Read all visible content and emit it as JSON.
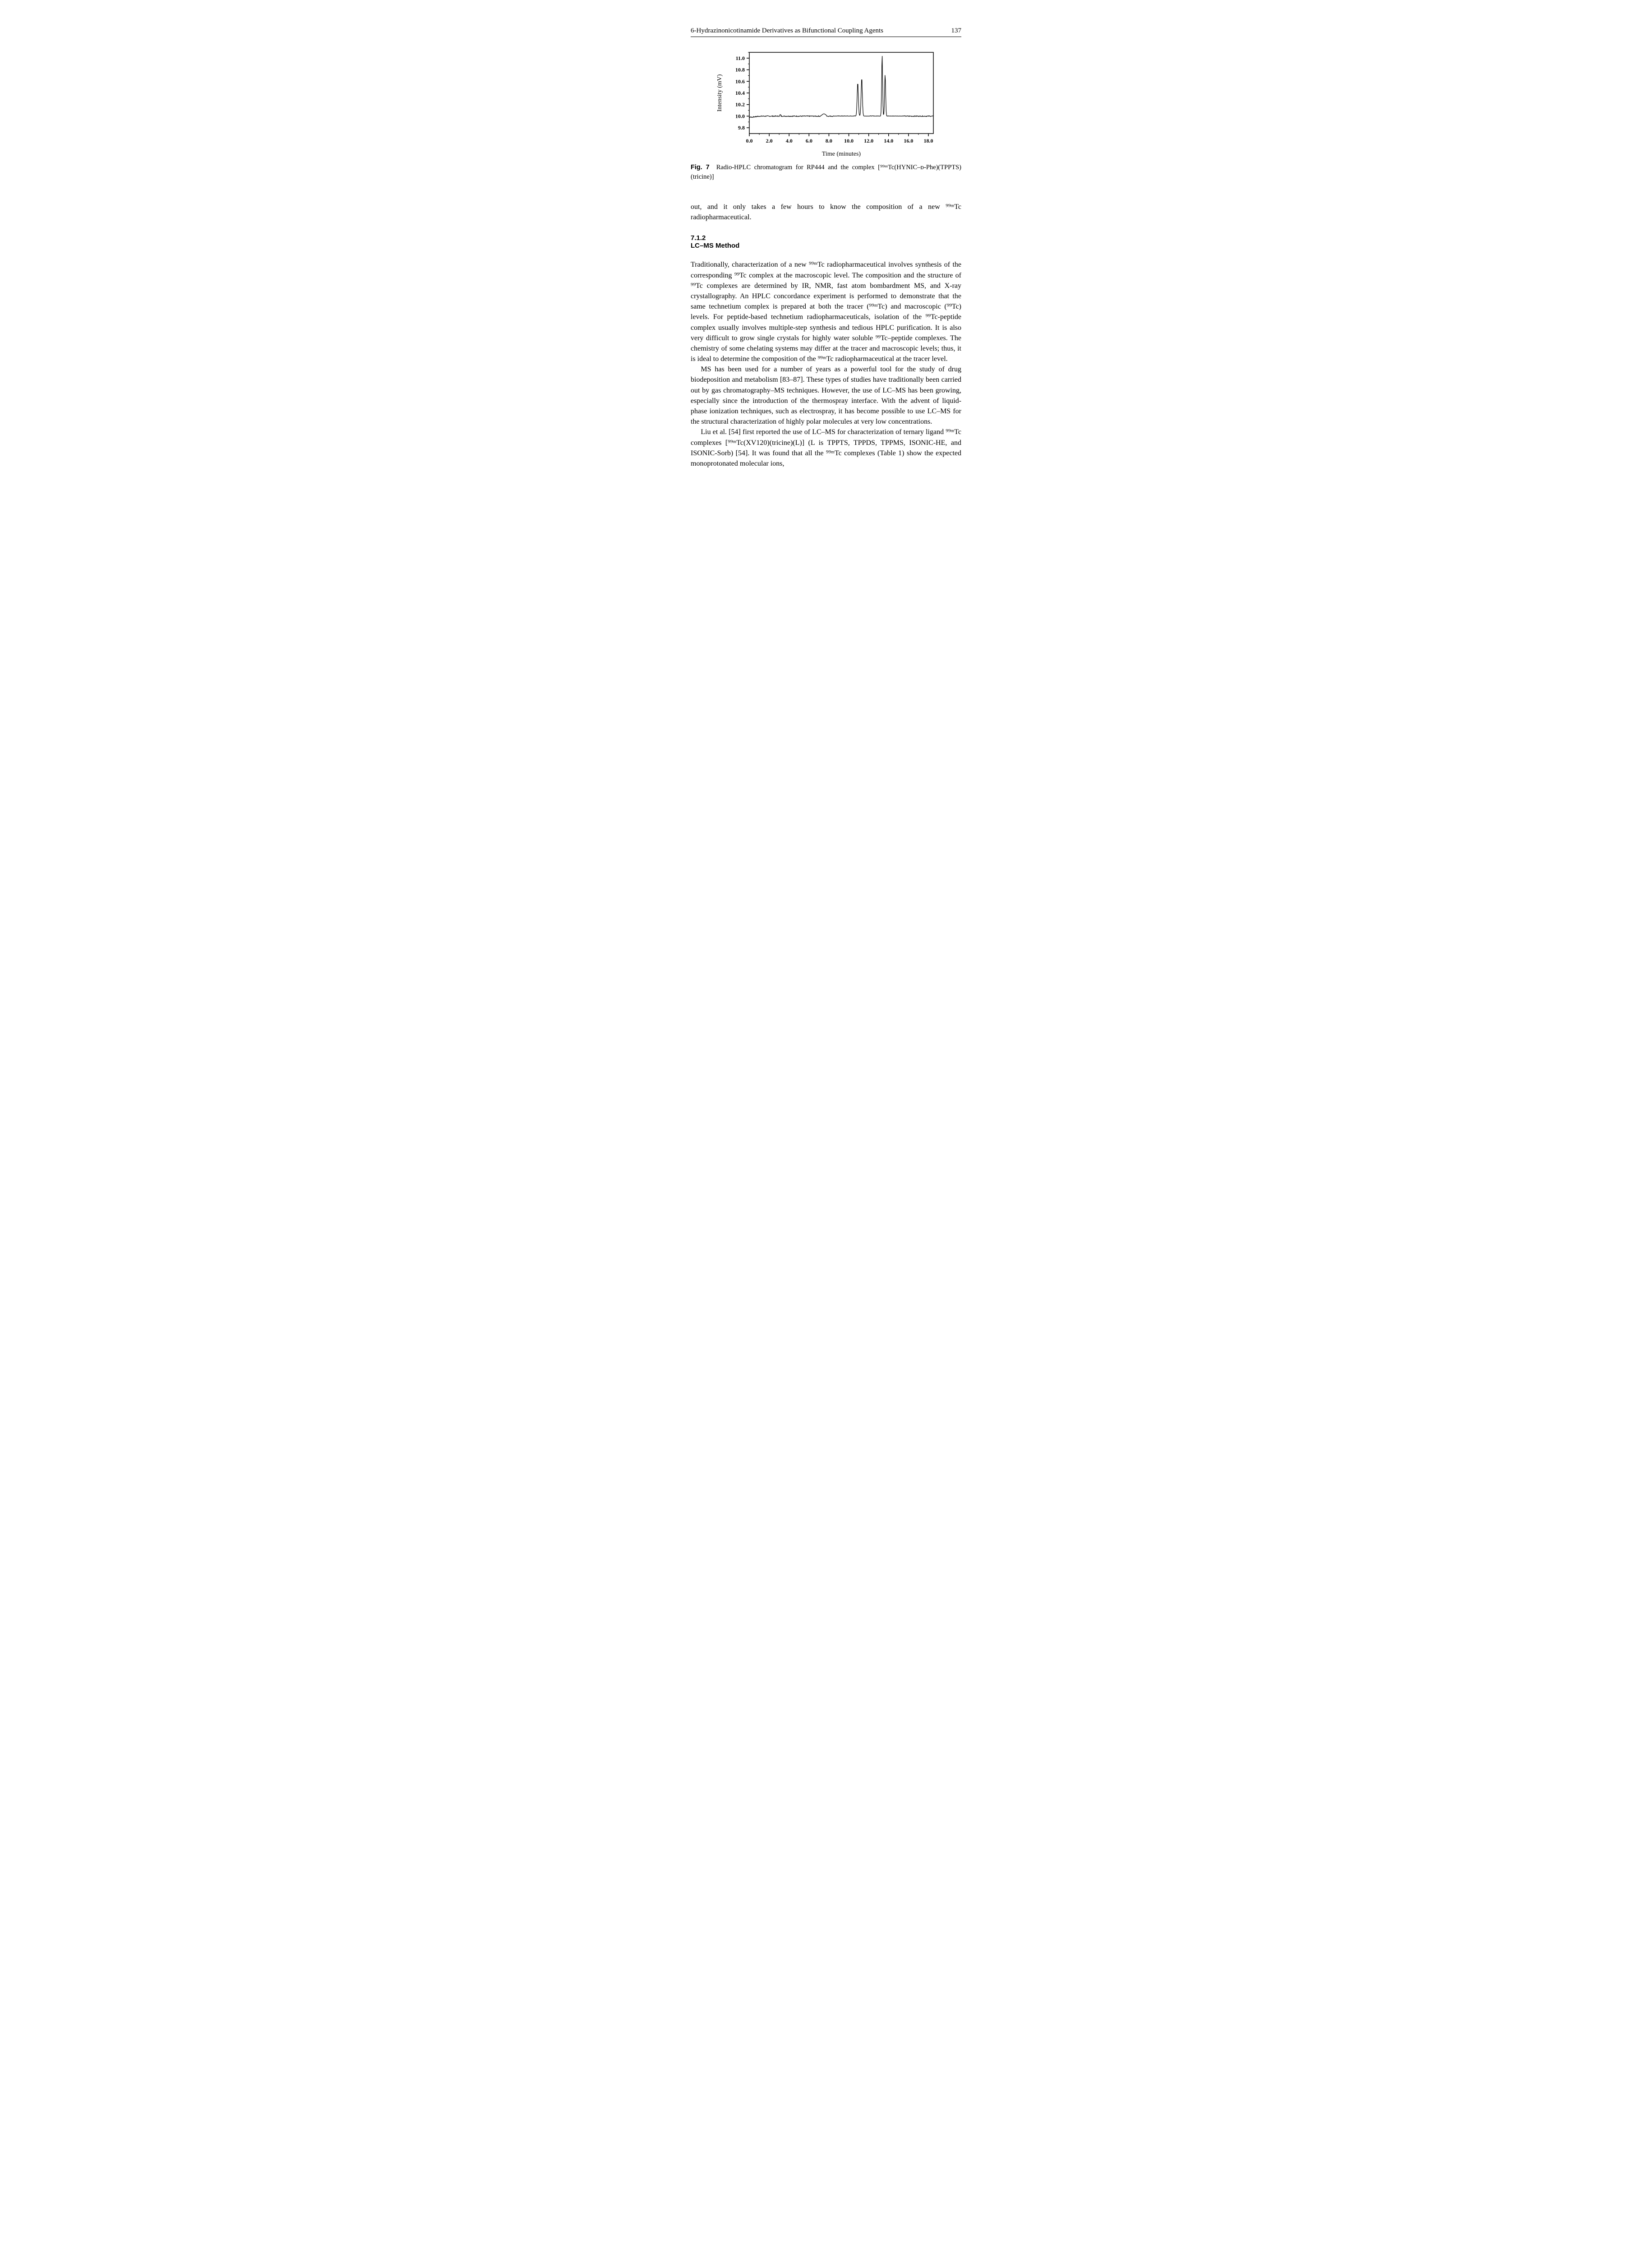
{
  "header": {
    "running_title": "6-Hydrazinonicotinamide Derivatives as Bifunctional Coupling Agents",
    "page_number": "137"
  },
  "figure7": {
    "type": "line",
    "ylabel": "Intensity (mV)",
    "xlabel": "Time (minutes)",
    "label_fontsize": 14,
    "tick_fontsize": 12,
    "xlim": [
      0.0,
      18.5
    ],
    "ylim": [
      9.7,
      11.1
    ],
    "xtick_step": 2.0,
    "ytick_step": 0.2,
    "xticks": [
      "0.0",
      "2.0",
      "4.0",
      "6.0",
      "8.0",
      "10.0",
      "12.0",
      "14.0",
      "16.0",
      "18.0"
    ],
    "yticks": [
      "9.8",
      "10.0",
      "10.2",
      "10.4",
      "10.6",
      "10.8",
      "11.0"
    ],
    "line_color": "#000000",
    "axis_color": "#000000",
    "background_color": "#ffffff",
    "line_width": 1.2,
    "baseline_y": 10.0,
    "noise_amplitude": 0.015,
    "peaks": [
      {
        "x_center": 10.9,
        "y_max": 10.58,
        "width": 0.26
      },
      {
        "x_center": 11.3,
        "y_max": 10.66,
        "width": 0.26
      },
      {
        "x_center": 13.35,
        "y_max": 11.06,
        "width": 0.2
      },
      {
        "x_center": 13.65,
        "y_max": 10.72,
        "width": 0.22
      }
    ],
    "caption_label": "Fig. 7",
    "caption_body": "Radio-HPLC chromatogram for RP444 and the complex [⁹⁹ᵐTc(HYNIC–ᴅ-Phe)(TPPTS)(tricine)]"
  },
  "continuation_paragraph": "out, and it only takes a few hours to know the composition of a new ⁹⁹ᵐTc radiopharmaceutical.",
  "section": {
    "number": "7.1.2",
    "title": "LC–MS Method"
  },
  "paragraphs": {
    "p1": "Traditionally, characterization of a new ⁹⁹ᵐTc radiopharmaceutical involves synthesis of the corresponding ⁹⁹Tc complex at the macroscopic level. The composition and the structure of ⁹⁹Tc complexes are determined by IR, NMR, fast atom bombardment MS, and X-ray crystallography. An HPLC concordance experiment is performed to demonstrate that the same technetium complex is prepared at both the tracer (⁹⁹ᵐTc) and macroscopic (⁹⁹Tc) levels. For peptide-based technetium radiopharmaceuticals, isolation of the ⁹⁹Tc-peptide complex usually involves multiple-step synthesis and tedious HPLC purification. It is also very difficult to grow single crystals for highly water soluble ⁹⁹Tc–peptide complexes. The chemistry of some chelating systems may differ at the tracer and macroscopic levels; thus, it is ideal to determine the composition of the ⁹⁹ᵐTc radiopharmaceutical at the tracer level.",
    "p2": "MS has been used for a number of years as a powerful tool for the study of drug biodeposition and metabolism [83–87]. These types of studies have traditionally been carried out by gas chromatography–MS techniques. However, the use of LC–MS has been growing, especially since the introduction of the thermospray interface. With the advent of liquid-phase ionization techniques, such as electrospray, it has become possible to use LC–MS for the structural characterization of highly polar molecules at very low concentrations.",
    "p3": "Liu et al. [54] first reported the use of LC–MS for characterization of ternary ligand ⁹⁹ᵐTc complexes [⁹⁹ᵐTc(XV120)(tricine)(L)] (L is TPPTS, TPPDS, TPPMS, ISONIC-HE, and ISONIC-Sorb) [54]. It was found that all the ⁹⁹ᵐTc complexes (Table 1) show the expected monoprotonated molecular ions,"
  }
}
